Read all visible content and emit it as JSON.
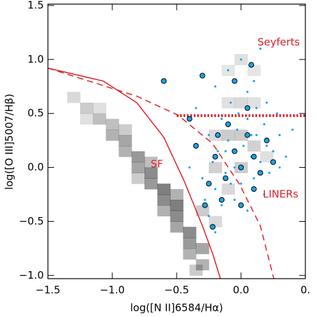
{
  "chart_data": {
    "type": "scatter",
    "xlabel": "log([N II]6584/Hα)",
    "ylabel": "log([O III]5007/Hβ)",
    "xlim": [
      -1.5,
      0.5
    ],
    "ylim": [
      -1.03,
      1.5
    ],
    "xticks": [
      {
        "value": -1.5,
        "label": "−1.5"
      },
      {
        "value": -1.0,
        "label": "−1.0"
      },
      {
        "value": -0.5,
        "label": "−0.5"
      },
      {
        "value": 0,
        "label": "0.0"
      },
      {
        "value": 0.5,
        "label": "0."
      }
    ],
    "yticks": [
      {
        "value": -1.0,
        "label": "−1.0"
      },
      {
        "value": -0.5,
        "label": "−0.5"
      },
      {
        "value": 0,
        "label": "0.0"
      },
      0.5,
      {
        "value": 1.0,
        "label": "1.0"
      },
      1.5
    ],
    "annotations": [
      "Seyferts",
      "SF",
      "LINERs"
    ],
    "density": {
      "color": "#000000",
      "cell": 0.1,
      "x": [
        -1.3,
        -1.2,
        -1.1,
        -1.0,
        -1.0,
        -0.9,
        -0.9,
        -0.8,
        -0.8,
        -0.7,
        -0.7,
        -0.6,
        -0.6,
        -0.5,
        -0.5,
        -0.5,
        -0.4,
        -0.4,
        -0.4,
        -0.3,
        -0.3,
        -0.35,
        -0.6,
        -0.7,
        -0.9,
        -1.1,
        -0.5,
        -0.8,
        -1.2,
        -0.1,
        0.0,
        0.1,
        -0.1,
        0.0,
        0.1,
        -0.2,
        -0.1,
        0.0,
        0.1,
        -0.2,
        0.0,
        -0.1,
        0.2,
        -0.3,
        -0.2
      ],
      "y": [
        0.65,
        0.55,
        0.45,
        0.4,
        0.3,
        0.25,
        0.15,
        0.1,
        0.0,
        -0.05,
        -0.15,
        -0.2,
        -0.3,
        -0.35,
        -0.45,
        -0.55,
        -0.6,
        -0.7,
        -0.8,
        -0.75,
        -0.9,
        -0.95,
        -0.4,
        0.05,
        0.35,
        0.55,
        -0.25,
        -0.1,
        0.45,
        0.9,
        1.0,
        0.9,
        0.6,
        0.6,
        0.6,
        0.3,
        0.3,
        0.3,
        0.2,
        0.0,
        0.0,
        -0.2,
        0.1,
        -0.4,
        -0.5
      ],
      "values": [
        0.15,
        0.2,
        0.25,
        0.25,
        0.3,
        0.35,
        0.3,
        0.4,
        0.35,
        0.45,
        0.4,
        0.5,
        0.45,
        0.5,
        0.45,
        0.35,
        0.45,
        0.4,
        0.3,
        0.35,
        0.3,
        0.2,
        0.3,
        0.25,
        0.2,
        0.12,
        0.3,
        0.2,
        0.12,
        0.1,
        0.12,
        0.1,
        0.12,
        0.15,
        0.12,
        0.15,
        0.2,
        0.2,
        0.18,
        0.18,
        0.2,
        0.15,
        0.12,
        0.2,
        0.15
      ]
    },
    "lines": [
      {
        "color": "#e0202a",
        "style": "solid",
        "x": [
          -1.5,
          -1.07,
          -0.81,
          -0.6,
          -0.44,
          -0.3,
          -0.22,
          -0.16
        ],
        "y": [
          0.92,
          0.8,
          0.6,
          0.28,
          -0.13,
          -0.54,
          -0.8,
          -1.03
        ]
      },
      {
        "color": "#e0202a",
        "style": "dashed",
        "x": [
          -1.5,
          -0.81,
          -0.49,
          -0.22,
          -0.01,
          0.15,
          0.255
        ],
        "y": [
          0.92,
          0.66,
          0.485,
          0.22,
          -0.16,
          -0.54,
          -1.03
        ]
      },
      {
        "color": "#e0202a",
        "style": "dotted",
        "x": [
          -0.5,
          0.5
        ],
        "y": [
          0.48,
          0.48
        ]
      }
    ],
    "series": [
      {
        "color": "#1aa3e8",
        "marker": "dot",
        "x": [
          -0.35,
          -0.3,
          -0.28,
          -0.25,
          -0.22,
          -0.2,
          -0.18,
          -0.15,
          -0.12,
          -0.1,
          -0.08,
          -0.05,
          -0.03,
          0.0,
          0.02,
          0.05,
          0.08,
          0.1,
          0.12,
          0.15,
          0.18,
          0.2,
          0.22,
          0.25,
          0.3,
          0.35,
          -0.1,
          0.0,
          0.1,
          0.15,
          -0.2,
          0.05,
          0.2,
          -0.3,
          -0.25,
          -0.15,
          -0.05,
          0.05,
          -0.2,
          0.4,
          0.28,
          -0.35,
          -0.4,
          0.12,
          -0.02,
          0.18,
          0.3,
          -0.12,
          0.08,
          -0.08
        ],
        "values": [
          0.2,
          -0.1,
          -0.3,
          0.3,
          0.05,
          -0.2,
          0.15,
          0.45,
          -0.05,
          0.25,
          0.6,
          0.0,
          0.35,
          -0.15,
          0.2,
          0.45,
          0.1,
          -0.1,
          0.3,
          0.05,
          0.4,
          0.2,
          -0.05,
          0.15,
          0.3,
          0.1,
          0.9,
          1.0,
          0.8,
          1.1,
          0.75,
          0.7,
          0.6,
          0.85,
          -0.45,
          -0.35,
          -0.3,
          -0.4,
          -0.6,
          0.35,
          0.5,
          0.55,
          0.0,
          0.55,
          0.5,
          -0.25,
          0.0,
          0.15,
          0.3,
          -0.15
        ]
      },
      {
        "color": "#1aa3e8",
        "marker": "circled",
        "x": [
          -0.3,
          -0.35,
          -0.28,
          -0.25,
          -0.2,
          -0.15,
          -0.1,
          -0.05,
          0.0,
          0.05,
          0.1,
          0.15,
          0.2,
          0.08,
          -0.05,
          0.0,
          -0.22,
          0.1,
          -0.18,
          0.25,
          -0.4,
          -0.6,
          0.05,
          -0.12
        ],
        "values": [
          0.85,
          0.2,
          -0.35,
          -0.15,
          0.1,
          -0.3,
          0.4,
          0.15,
          0.0,
          0.3,
          0.1,
          -0.05,
          0.25,
          0.95,
          0.8,
          -0.35,
          -0.55,
          -0.2,
          0.3,
          0.05,
          0.45,
          0.8,
          0.55,
          -0.1
        ]
      }
    ]
  }
}
